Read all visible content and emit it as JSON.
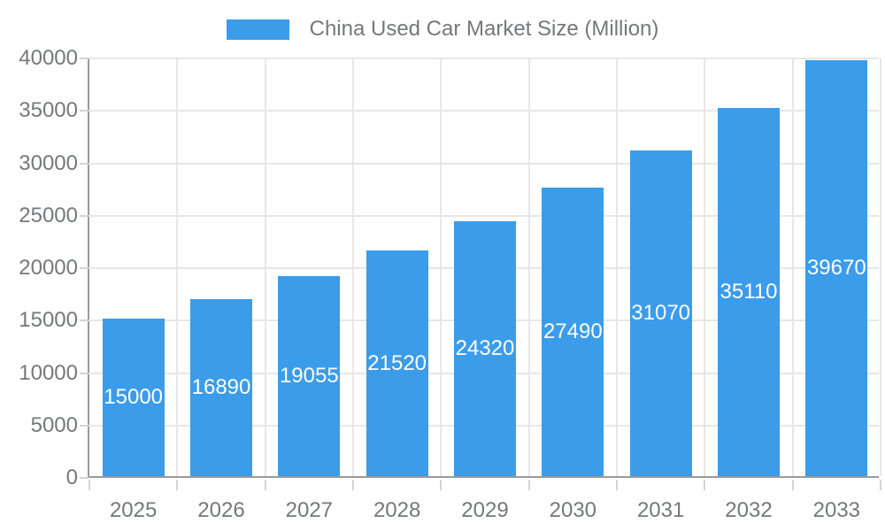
{
  "legend": {
    "label": "China Used Car Market Size (Million)"
  },
  "chart_data": {
    "type": "bar",
    "title": "China Used Car Market Size (Million)",
    "categories": [
      "2025",
      "2026",
      "2027",
      "2028",
      "2029",
      "2030",
      "2031",
      "2032",
      "2033"
    ],
    "values": [
      15000,
      16890,
      19055,
      21520,
      24320,
      27490,
      31070,
      35110,
      39670
    ],
    "xlabel": "",
    "ylabel": "",
    "ylim": [
      0,
      40000
    ],
    "yticks": [
      0,
      5000,
      10000,
      15000,
      20000,
      25000,
      30000,
      35000,
      40000
    ],
    "grid": true,
    "legend_position": "top-center",
    "value_labels": "inside-center",
    "colors": {
      "bar": "#3B9CEA",
      "value_label": "#FFFFFF",
      "axis_label": "#75787B",
      "legend_label": "#75787B",
      "grid_line": "#E7E7E7",
      "axis_line": "#9A9A9A",
      "tick": "#D4D4D4"
    }
  }
}
